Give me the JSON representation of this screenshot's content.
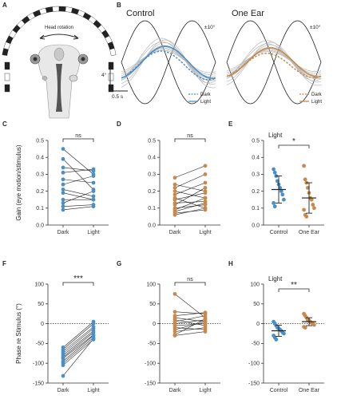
{
  "colors": {
    "control": "#4a90c8",
    "one_ear": "#c8894a",
    "gray": "#b8b8b8",
    "black": "#222222"
  },
  "panel_letters": [
    "A",
    "B",
    "C",
    "D",
    "E",
    "F",
    "G",
    "H"
  ],
  "panel_a": {
    "label": "Head rotation"
  },
  "panel_b": {
    "left_title": "Control",
    "right_title": "One Ear",
    "stim_amp": "±10°",
    "scale_y": "4°",
    "scale_x": "0.5 s",
    "legend_dark": "Dark",
    "legend_light": "Light"
  },
  "chart_data": [
    {
      "id": "C",
      "type": "scatter",
      "ylabel": "Gain (eye motion/stimulus)",
      "categories": [
        "Dark",
        "Light"
      ],
      "ylim": [
        0,
        0.5
      ],
      "yticks": [
        "0.0",
        "0.1",
        "0.2",
        "0.3",
        "0.4",
        "0.5"
      ],
      "color_key": "control",
      "sig": "ns",
      "pairs": [
        [
          0.45,
          0.3
        ],
        [
          0.39,
          0.21
        ],
        [
          0.34,
          0.32
        ],
        [
          0.31,
          0.33
        ],
        [
          0.27,
          0.25
        ],
        [
          0.24,
          0.29
        ],
        [
          0.21,
          0.17
        ],
        [
          0.19,
          0.15
        ],
        [
          0.15,
          0.15
        ],
        [
          0.13,
          0.2
        ],
        [
          0.11,
          0.12
        ],
        [
          0.09,
          0.11
        ]
      ]
    },
    {
      "id": "D",
      "type": "scatter",
      "ylabel": "",
      "categories": [
        "Dark",
        "Light"
      ],
      "ylim": [
        0,
        0.5
      ],
      "yticks": [
        "0.0",
        "0.1",
        "0.2",
        "0.3",
        "0.4",
        "0.5"
      ],
      "color_key": "one_ear",
      "sig": "ns",
      "pairs": [
        [
          0.28,
          0.35
        ],
        [
          0.24,
          0.2
        ],
        [
          0.22,
          0.3
        ],
        [
          0.2,
          0.16
        ],
        [
          0.18,
          0.25
        ],
        [
          0.16,
          0.1
        ],
        [
          0.15,
          0.19
        ],
        [
          0.13,
          0.14
        ],
        [
          0.12,
          0.22
        ],
        [
          0.1,
          0.12
        ],
        [
          0.09,
          0.16
        ],
        [
          0.08,
          0.13
        ],
        [
          0.07,
          0.09
        ],
        [
          0.06,
          0.1
        ]
      ]
    },
    {
      "id": "E",
      "type": "scatter",
      "panel_title": "Light",
      "categories": [
        "Control",
        "One Ear"
      ],
      "ylim": [
        0,
        0.5
      ],
      "yticks": [
        "0.0",
        "0.1",
        "0.2",
        "0.3",
        "0.4",
        "0.5"
      ],
      "sig": "*",
      "groups": [
        {
          "color_key": "control",
          "mean": 0.21,
          "sd": 0.08,
          "values": [
            0.33,
            0.31,
            0.29,
            0.26,
            0.24,
            0.22,
            0.2,
            0.18,
            0.15,
            0.13,
            0.11
          ]
        },
        {
          "color_key": "one_ear",
          "mean": 0.16,
          "sd": 0.09,
          "values": [
            0.35,
            0.27,
            0.25,
            0.22,
            0.19,
            0.16,
            0.15,
            0.12,
            0.1,
            0.09,
            0.06,
            0.05
          ]
        }
      ]
    },
    {
      "id": "F",
      "type": "scatter",
      "ylabel": "Phase re Stimulus (°)",
      "categories": [
        "Dark",
        "Light"
      ],
      "ylim": [
        -150,
        100
      ],
      "yticks": [
        "100",
        "50",
        "0",
        "-50",
        "-100",
        "-150"
      ],
      "color_key": "control",
      "sig": "***",
      "pairs": [
        [
          -60,
          5
        ],
        [
          -65,
          0
        ],
        [
          -70,
          -8
        ],
        [
          -75,
          -12
        ],
        [
          -80,
          -18
        ],
        [
          -85,
          -22
        ],
        [
          -88,
          -28
        ],
        [
          -95,
          -30
        ],
        [
          -100,
          -35
        ],
        [
          -105,
          -40
        ],
        [
          -132,
          -38
        ]
      ]
    },
    {
      "id": "G",
      "type": "scatter",
      "ylabel": "",
      "categories": [
        "Dark",
        "Light"
      ],
      "ylim": [
        -150,
        100
      ],
      "yticks": [
        "100",
        "50",
        "0",
        "-50",
        "-100",
        "-150"
      ],
      "color_key": "one_ear",
      "sig": "ns",
      "pairs": [
        [
          75,
          15
        ],
        [
          30,
          25
        ],
        [
          20,
          28
        ],
        [
          15,
          5
        ],
        [
          10,
          -5
        ],
        [
          5,
          20
        ],
        [
          0,
          10
        ],
        [
          -5,
          0
        ],
        [
          -10,
          -15
        ],
        [
          -15,
          5
        ],
        [
          -20,
          -10
        ],
        [
          -28,
          12
        ],
        [
          -30,
          -20
        ]
      ]
    },
    {
      "id": "H",
      "type": "scatter",
      "panel_title": "Light",
      "categories": [
        "Control",
        "One Ear"
      ],
      "ylim": [
        -150,
        100
      ],
      "yticks": [
        "100",
        "50",
        "0",
        "-50",
        "-100",
        "-150"
      ],
      "sig": "**",
      "groups": [
        {
          "color_key": "control",
          "mean": -18,
          "sd": 14,
          "values": [
            5,
            0,
            -5,
            -10,
            -12,
            -15,
            -18,
            -22,
            -25,
            -30,
            -35,
            -40
          ]
        },
        {
          "color_key": "one_ear",
          "mean": 5,
          "sd": 10,
          "values": [
            25,
            20,
            15,
            10,
            8,
            5,
            2,
            0,
            -3,
            -8,
            -10
          ]
        }
      ]
    }
  ]
}
